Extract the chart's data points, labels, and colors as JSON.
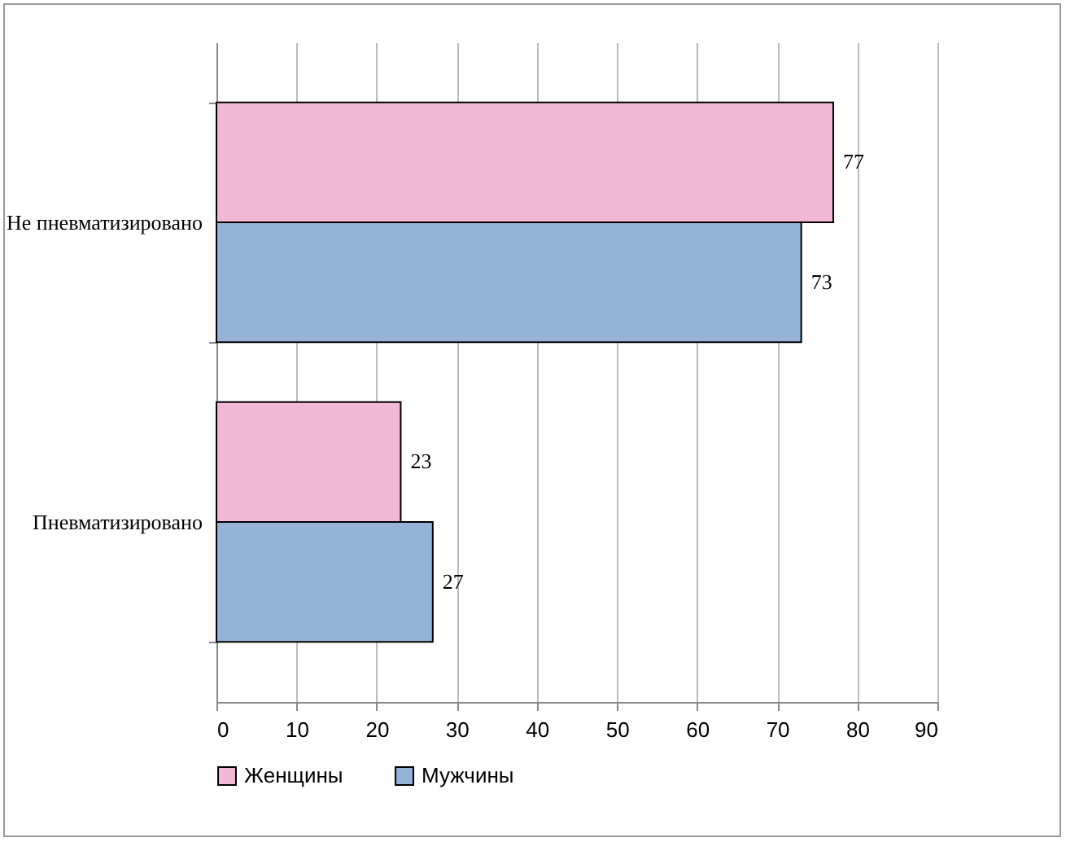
{
  "chart_data": {
    "type": "bar",
    "orientation": "horizontal",
    "categories": [
      "Не пневматизировано",
      "Пневматизировано"
    ],
    "series": [
      {
        "name": "Женщины",
        "color": "#f2b8d6",
        "values": [
          77,
          23
        ]
      },
      {
        "name": "Мужчины",
        "color": "#95b3d7",
        "values": [
          73,
          27
        ]
      }
    ],
    "xlim": [
      0,
      90
    ],
    "xticks": [
      0,
      10,
      20,
      30,
      40,
      50,
      60,
      70,
      80,
      90
    ],
    "grid": "x",
    "legend": "bottom",
    "data_labels": true
  }
}
